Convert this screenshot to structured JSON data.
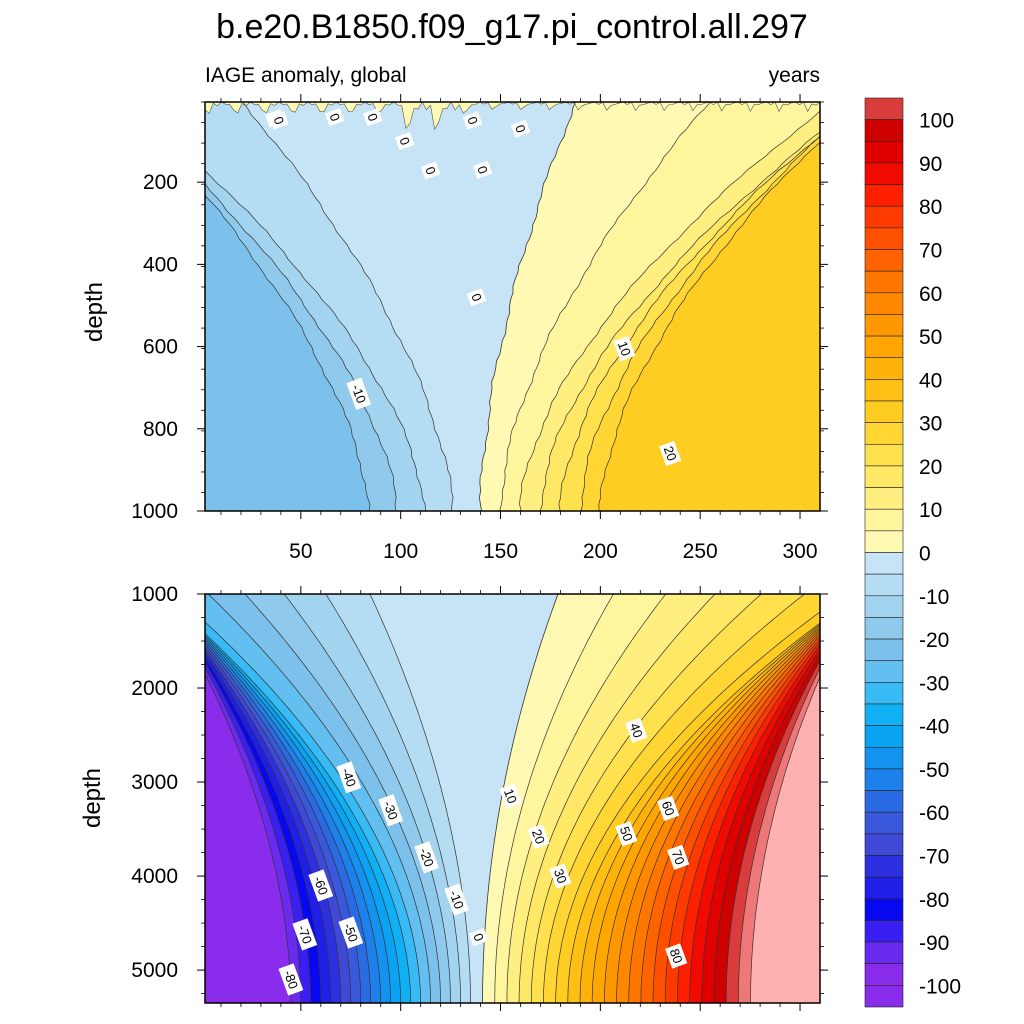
{
  "chart_data": {
    "type": "heatmap",
    "title": "b.e20.B1850.f09_g17.pi_control.all.297",
    "left_string": "IAGE anomaly, global",
    "right_string": "years",
    "x_ticks": [
      "50",
      "100",
      "150",
      "200",
      "250",
      "300"
    ],
    "xlim": [
      2,
      310
    ],
    "panels": [
      {
        "name": "upper",
        "ylabel": "depth",
        "ylim": [
          1000,
          5
        ],
        "y_ticks": [
          "200",
          "400",
          "600",
          "800",
          "1000"
        ],
        "contour_labels": [
          {
            "text": "0",
            "x": 37,
            "y": 45
          },
          {
            "text": "0",
            "x": 39,
            "y": 50
          },
          {
            "text": "0",
            "x": 67,
            "y": 42
          },
          {
            "text": "0",
            "x": 86,
            "y": 42
          },
          {
            "text": "0",
            "x": 102,
            "y": 100
          },
          {
            "text": "0",
            "x": 115,
            "y": 172
          },
          {
            "text": "0",
            "x": 136,
            "y": 50
          },
          {
            "text": "0",
            "x": 141,
            "y": 170
          },
          {
            "text": "0",
            "x": 160,
            "y": 70
          },
          {
            "text": "0",
            "x": 138,
            "y": 480
          },
          {
            "text": "-10",
            "x": 79,
            "y": 715
          },
          {
            "text": "10",
            "x": 212,
            "y": 605
          },
          {
            "text": "20",
            "x": 235,
            "y": 860
          }
        ]
      },
      {
        "name": "lower",
        "ylabel": "depth",
        "ylim": [
          5350,
          1000
        ],
        "y_ticks": [
          "1000",
          "2000",
          "3000",
          "4000",
          "5000"
        ],
        "contour_labels": [
          {
            "text": "-40",
            "x": 74,
            "y": 2950
          },
          {
            "text": "-30",
            "x": 95,
            "y": 3300
          },
          {
            "text": "-20",
            "x": 113,
            "y": 3800
          },
          {
            "text": "-10",
            "x": 128,
            "y": 4250
          },
          {
            "text": "0",
            "x": 139,
            "y": 4650
          },
          {
            "text": "-60",
            "x": 60,
            "y": 4100
          },
          {
            "text": "-50",
            "x": 75,
            "y": 4600
          },
          {
            "text": "-70",
            "x": 52,
            "y": 4620
          },
          {
            "text": "-80",
            "x": 45,
            "y": 5100
          },
          {
            "text": "10",
            "x": 155,
            "y": 3150
          },
          {
            "text": "20",
            "x": 169,
            "y": 3580
          },
          {
            "text": "30",
            "x": 180,
            "y": 4000
          },
          {
            "text": "40",
            "x": 218,
            "y": 2450
          },
          {
            "text": "50",
            "x": 213,
            "y": 3550
          },
          {
            "text": "60",
            "x": 234,
            "y": 3280
          },
          {
            "text": "70",
            "x": 239,
            "y": 3800
          },
          {
            "text": "80",
            "x": 238,
            "y": 4850
          }
        ]
      }
    ],
    "colorbar": {
      "labels": [
        "100",
        "90",
        "80",
        "70",
        "60",
        "50",
        "40",
        "30",
        "20",
        "10",
        "0",
        "-10",
        "-20",
        "-30",
        "-40",
        "-50",
        "-60",
        "-70",
        "-80",
        "-90",
        "-100"
      ],
      "levels_top_to_bottom": [
        105,
        100,
        95,
        90,
        85,
        80,
        75,
        70,
        65,
        60,
        55,
        50,
        45,
        40,
        35,
        30,
        25,
        20,
        15,
        10,
        5,
        0,
        -5,
        -10,
        -15,
        -20,
        -25,
        -30,
        -35,
        -40,
        -45,
        -50,
        -55,
        -60,
        -65,
        -70,
        -75,
        -80,
        -85,
        -90,
        -95,
        -100,
        -105
      ]
    }
  },
  "colors": {
    "positive": [
      "#fff9b3",
      "#fff59d",
      "#ffef80",
      "#ffe866",
      "#ffe04d",
      "#ffd633",
      "#ffcc22",
      "#ffbf14",
      "#ffb30a",
      "#ffa600",
      "#ff9800",
      "#ff8800",
      "#ff7700",
      "#ff6400",
      "#ff5000",
      "#ff3a00",
      "#ff2000",
      "#f20a00",
      "#e00000",
      "#cf0000",
      "#d83c3c",
      "#ee7878",
      "#ffb0b0"
    ],
    "negative": [
      "#c6e4f6",
      "#b4dcf2",
      "#a2d3ef",
      "#8fcaec",
      "#7cc1eb",
      "#62bff0",
      "#38baf5",
      "#10b0f5",
      "#0aa2f3",
      "#1492f0",
      "#1e80ea",
      "#2a6ae2",
      "#3a58dc",
      "#4048d6",
      "#2d30e0",
      "#1f1fe8",
      "#0808f0",
      "#3a1ff2",
      "#6a2af0",
      "#8a2cec"
    ]
  }
}
